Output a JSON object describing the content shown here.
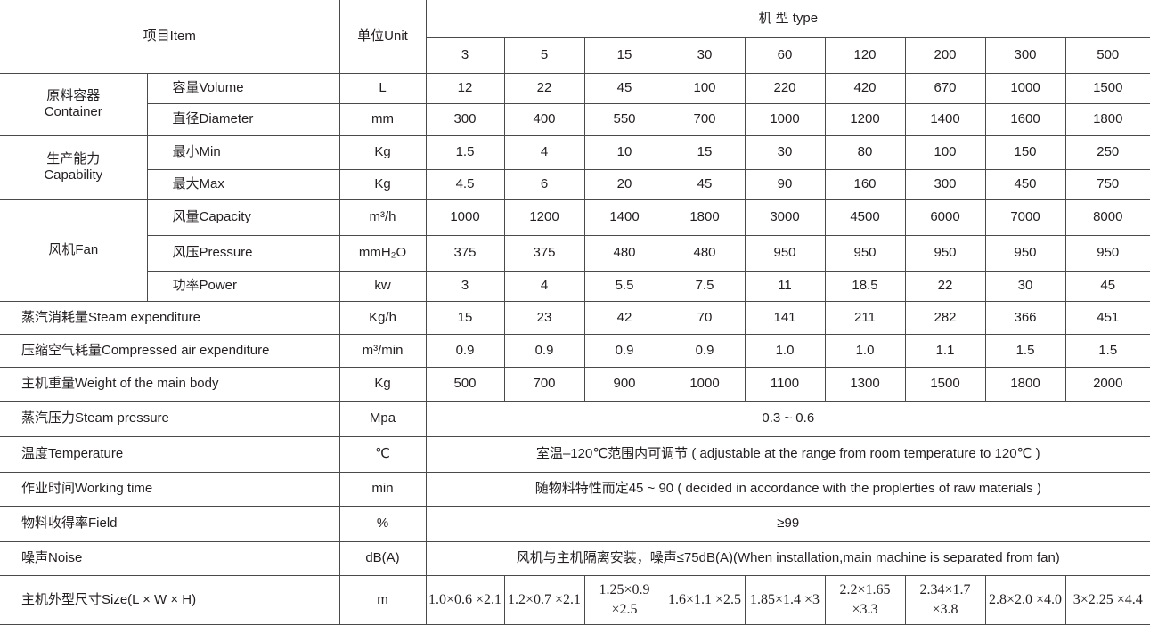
{
  "header": {
    "item": "项目Item",
    "unit": "单位Unit",
    "model": "机 型 type",
    "models": [
      "3",
      "5",
      "15",
      "30",
      "60",
      "120",
      "200",
      "300",
      "500"
    ]
  },
  "groups": [
    {
      "label": "原料容器\nContainer",
      "rows": [
        {
          "name": "容量Volume",
          "unit": "L",
          "values": [
            "12",
            "22",
            "45",
            "100",
            "220",
            "420",
            "670",
            "1000",
            "1500"
          ]
        },
        {
          "name": "直径Diameter",
          "unit": "mm",
          "values": [
            "300",
            "400",
            "550",
            "700",
            "1000",
            "1200",
            "1400",
            "1600",
            "1800"
          ]
        }
      ]
    },
    {
      "label": "生产能力\nCapability",
      "rows": [
        {
          "name": "最小Min",
          "unit": "Kg",
          "values": [
            "1.5",
            "4",
            "10",
            "15",
            "30",
            "80",
            "100",
            "150",
            "250"
          ]
        },
        {
          "name": "最大Max",
          "unit": "Kg",
          "values": [
            "4.5",
            "6",
            "20",
            "45",
            "90",
            "160",
            "300",
            "450",
            "750"
          ]
        }
      ]
    },
    {
      "label": "风机Fan",
      "rows": [
        {
          "name": "风量Capacity",
          "unit": "m³/h",
          "values": [
            "1000",
            "1200",
            "1400",
            "1800",
            "3000",
            "4500",
            "6000",
            "7000",
            "8000"
          ]
        },
        {
          "name": "风压Pressure",
          "unit": "mmH₂O",
          "values": [
            "375",
            "375",
            "480",
            "480",
            "950",
            "950",
            "950",
            "950",
            "950"
          ]
        },
        {
          "name": "功率Power",
          "unit": "kw",
          "values": [
            "3",
            "4",
            "5.5",
            "7.5",
            "11",
            "18.5",
            "22",
            "30",
            "45"
          ]
        }
      ]
    }
  ],
  "rows": [
    {
      "name": "蒸汽消耗量Steam expenditure",
      "unit": "Kg/h",
      "values": [
        "15",
        "23",
        "42",
        "70",
        "141",
        "211",
        "282",
        "366",
        "451"
      ]
    },
    {
      "name": "压缩空气耗量Compressed air expenditure",
      "unit": "m³/min",
      "values": [
        "0.9",
        "0.9",
        "0.9",
        "0.9",
        "1.0",
        "1.0",
        "1.1",
        "1.5",
        "1.5"
      ]
    },
    {
      "name": "主机重量Weight of the main body",
      "unit": "Kg",
      "values": [
        "500",
        "700",
        "900",
        "1000",
        "1100",
        "1300",
        "1500",
        "1800",
        "2000"
      ]
    },
    {
      "name": "蒸汽压力Steam pressure",
      "unit": "Mpa",
      "span": "0.3 ~ 0.6"
    },
    {
      "name": "温度Temperature",
      "unit": "℃",
      "span": "室温–120℃范围内可调节 ( adjustable at the range from room temperature to 120℃ )"
    },
    {
      "name": "作业时间Working time",
      "unit": "min",
      "span": "随物料特性而定45 ~ 90 ( decided in accordance with the proplerties of raw materials )"
    },
    {
      "name": "物料收得率Field",
      "unit": "%",
      "span": "≥99"
    },
    {
      "name": "噪声Noise",
      "unit": "dB(A)",
      "span": "风机与主机隔离安装，噪声≤75dB(A)(When installation,main machine is separated from fan)"
    },
    {
      "name": "主机外型尺寸Size(L × W × H)",
      "unit": "m",
      "size": true,
      "values": [
        "1.0×0.6 ×2.1",
        "1.2×0.7 ×2.1",
        "1.25×0.9 ×2.5",
        "1.6×1.1 ×2.5",
        "1.85×1.4 ×3",
        "2.2×1.65 ×3.3",
        "2.34×1.7 ×3.8",
        "2.8×2.0 ×4.0",
        "3×2.25 ×4.4"
      ]
    }
  ]
}
